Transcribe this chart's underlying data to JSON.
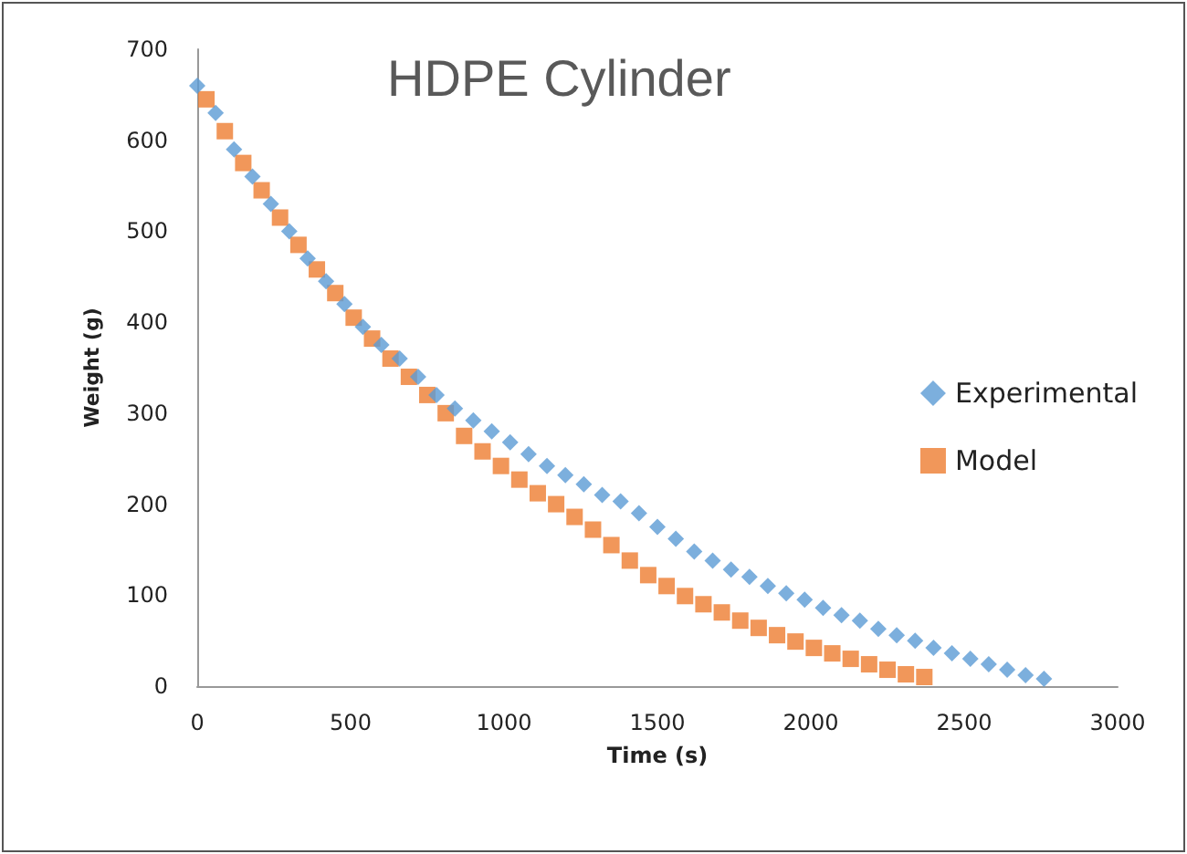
{
  "chart_data": {
    "type": "scatter",
    "title": "HDPE Cylinder",
    "xlabel": "Time (s)",
    "ylabel": "Weight (g)",
    "xlim": [
      0,
      3000
    ],
    "xticks": [
      0,
      500,
      1000,
      1500,
      2000,
      2500,
      3000
    ],
    "ylim": [
      0,
      700
    ],
    "yticks": [
      0,
      100,
      200,
      300,
      400,
      500,
      600,
      700
    ],
    "grid": false,
    "legend": "right",
    "series": [
      {
        "name": "Experimental",
        "color": "#5b9bd5",
        "marker": "diamond",
        "x": [
          0,
          60,
          120,
          180,
          240,
          300,
          360,
          420,
          480,
          540,
          600,
          660,
          720,
          780,
          840,
          900,
          960,
          1020,
          1080,
          1140,
          1200,
          1260,
          1320,
          1380,
          1440,
          1500,
          1560,
          1620,
          1680,
          1740,
          1800,
          1860,
          1920,
          1980,
          2040,
          2100,
          2160,
          2220,
          2280,
          2340,
          2400,
          2460,
          2520,
          2580,
          2640,
          2700,
          2760
        ],
        "values": [
          660,
          630,
          590,
          560,
          530,
          500,
          470,
          445,
          420,
          395,
          375,
          360,
          340,
          320,
          305,
          292,
          280,
          268,
          255,
          242,
          232,
          222,
          210,
          203,
          190,
          175,
          162,
          148,
          138,
          128,
          120,
          110,
          102,
          95,
          86,
          78,
          72,
          63,
          56,
          50,
          42,
          36,
          30,
          24,
          18,
          12,
          8
        ]
      },
      {
        "name": "Model",
        "color": "#ed7d31",
        "marker": "square",
        "x": [
          30,
          90,
          150,
          210,
          270,
          330,
          390,
          450,
          510,
          570,
          630,
          690,
          750,
          810,
          870,
          930,
          990,
          1050,
          1110,
          1170,
          1230,
          1290,
          1350,
          1410,
          1470,
          1530,
          1590,
          1650,
          1710,
          1770,
          1830,
          1890,
          1950,
          2010,
          2070,
          2130,
          2190,
          2250,
          2310,
          2370
        ],
        "values": [
          645,
          610,
          575,
          545,
          515,
          485,
          458,
          432,
          405,
          382,
          360,
          340,
          320,
          300,
          275,
          258,
          242,
          227,
          212,
          200,
          186,
          172,
          155,
          138,
          122,
          110,
          99,
          90,
          81,
          72,
          64,
          56,
          49,
          42,
          36,
          30,
          24,
          18,
          13,
          10
        ]
      }
    ]
  }
}
